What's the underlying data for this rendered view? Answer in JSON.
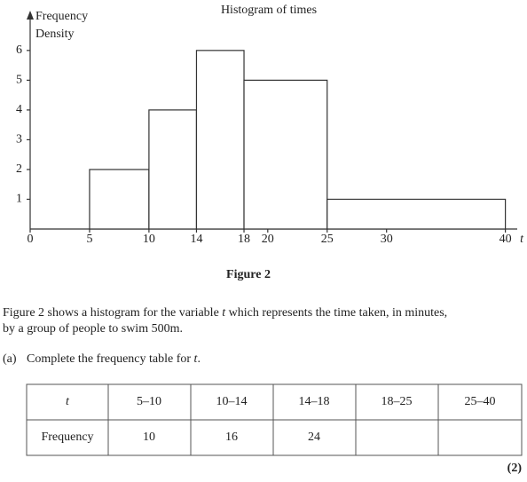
{
  "chart_data": {
    "type": "histogram",
    "title": "Histogram of times",
    "ylabel": [
      "Frequency",
      "Density"
    ],
    "xlabel": "t",
    "bins": [
      5,
      10,
      14,
      18,
      25,
      40
    ],
    "values": [
      2,
      4,
      6,
      5,
      1
    ],
    "color": "#ffffff",
    "xlim": [
      0,
      41
    ],
    "ylim": [
      0,
      7.2
    ],
    "xticks": [
      0,
      5,
      10,
      14,
      18,
      20,
      25,
      30,
      40
    ],
    "yticks": [
      1,
      2,
      3,
      4,
      5,
      6
    ]
  },
  "document": {
    "caption": "Figure 2",
    "paragraph": [
      [
        "Figure 2 shows a histogram for the variable ",
        "t",
        " which represents the time taken, in minutes,"
      ],
      [
        "by a group of people to swim 500m."
      ]
    ],
    "question": {
      "label": "(a)",
      "parts": [
        "Complete the frequency table for ",
        "t",
        "."
      ]
    },
    "table": {
      "header": [
        "t",
        "5–10",
        "10–14",
        "14–18",
        "18–25",
        "25–40"
      ],
      "rows": [
        [
          "Frequency",
          10,
          16,
          24
        ]
      ]
    },
    "marks": "(2)"
  }
}
